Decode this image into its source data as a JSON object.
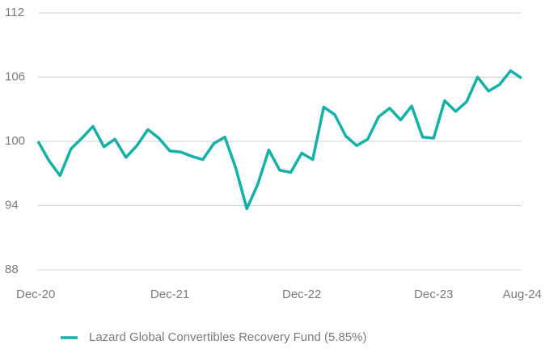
{
  "chart_data": {
    "type": "line",
    "categories": [
      "Dec-20",
      null,
      null,
      null,
      null,
      null,
      null,
      null,
      null,
      null,
      null,
      null,
      "Dec-21",
      null,
      null,
      null,
      null,
      null,
      null,
      null,
      null,
      null,
      null,
      null,
      "Dec-22",
      null,
      null,
      null,
      null,
      null,
      null,
      null,
      null,
      null,
      null,
      null,
      "Dec-23",
      null,
      null,
      null,
      null,
      null,
      null,
      null,
      "Aug-24"
    ],
    "series": [
      {
        "name": "Lazard Global Convertibles Recovery Fund (5.85%)",
        "color": "#13b1a8",
        "values": [
          100.0,
          98.2,
          96.8,
          99.3,
          100.3,
          101.4,
          99.5,
          100.2,
          98.5,
          99.6,
          101.1,
          100.3,
          99.1,
          99.0,
          98.6,
          98.3,
          99.8,
          100.4,
          97.5,
          93.7,
          96.0,
          99.2,
          97.3,
          97.1,
          98.9,
          98.3,
          103.2,
          102.5,
          100.5,
          99.6,
          100.2,
          102.3,
          103.1,
          102.0,
          103.3,
          100.4,
          100.3,
          103.8,
          102.8,
          103.7,
          106.0,
          104.7,
          105.3,
          106.6,
          105.9
        ]
      }
    ],
    "ylim": [
      88,
      112
    ],
    "yticks": [
      88,
      94,
      100,
      106,
      112
    ],
    "grid": true
  }
}
